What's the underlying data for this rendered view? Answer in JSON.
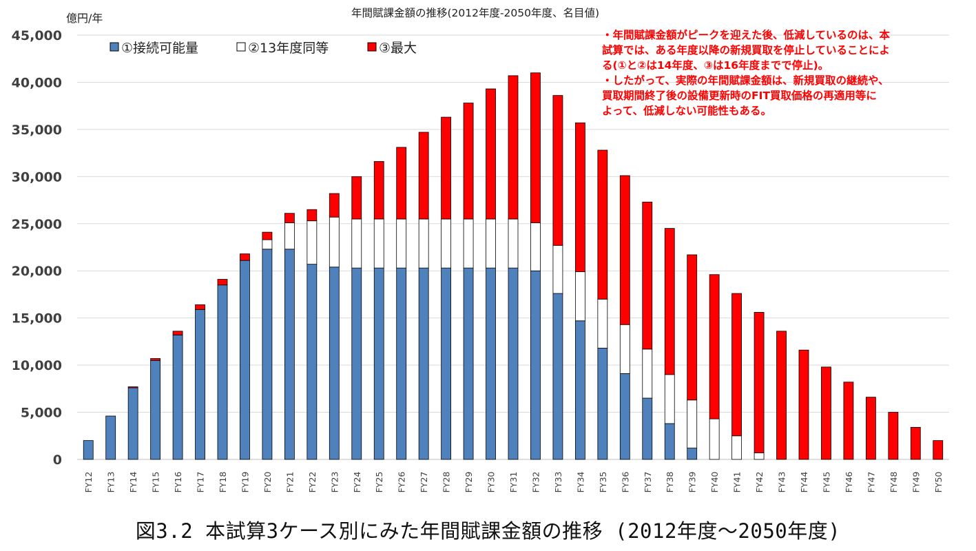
{
  "chart_data": {
    "type": "bar",
    "stacked": true,
    "title": "年間賦課金額の推移(2012年度-2050年度、名目値)",
    "ylabel": "億円/年",
    "ylim": [
      0,
      45000
    ],
    "yticks": [
      0,
      5000,
      10000,
      15000,
      20000,
      25000,
      30000,
      35000,
      40000,
      45000
    ],
    "ytick_labels": [
      "0",
      "5,000",
      "10,000",
      "15,000",
      "20,000",
      "25,000",
      "30,000",
      "35,000",
      "40,000",
      "45,000"
    ],
    "grid": true,
    "legend_position": "top-left",
    "categories": [
      "FY12",
      "FY13",
      "FY14",
      "FY15",
      "FY16",
      "FY17",
      "FY18",
      "FY19",
      "FY20",
      "FY21",
      "FY22",
      "FY23",
      "FY24",
      "FY25",
      "FY26",
      "FY27",
      "FY28",
      "FY29",
      "FY30",
      "FY31",
      "FY32",
      "FY33",
      "FY34",
      "FY35",
      "FY36",
      "FY37",
      "FY38",
      "FY39",
      "FY40",
      "FY41",
      "FY42",
      "FY43",
      "FY44",
      "FY45",
      "FY46",
      "FY47",
      "FY48",
      "FY49",
      "FY50"
    ],
    "series": [
      {
        "name": "①接続可能量",
        "color": "#4f81bd",
        "values": [
          2000,
          4600,
          7600,
          10500,
          13200,
          15900,
          18500,
          21100,
          22300,
          22300,
          20700,
          20400,
          20300,
          20300,
          20300,
          20300,
          20300,
          20300,
          20300,
          20300,
          20000,
          17600,
          14700,
          11800,
          9100,
          6500,
          3800,
          1200,
          0,
          0,
          0,
          0,
          0,
          0,
          0,
          0,
          0,
          0,
          0
        ]
      },
      {
        "name": "②13年度同等",
        "color": "#ffffff",
        "values": [
          0,
          0,
          0,
          0,
          0,
          0,
          0,
          0,
          1000,
          2800,
          4600,
          5300,
          5200,
          5200,
          5200,
          5200,
          5200,
          5200,
          5200,
          5200,
          5100,
          5100,
          5200,
          5200,
          5200,
          5200,
          5200,
          5100,
          4300,
          2500,
          700,
          0,
          0,
          0,
          0,
          0,
          0,
          0,
          0
        ]
      },
      {
        "name": "③最大",
        "color": "#ff0000",
        "values": [
          0,
          0,
          100,
          200,
          400,
          500,
          600,
          700,
          800,
          1000,
          1200,
          2500,
          4500,
          6100,
          7600,
          9200,
          10800,
          12300,
          13800,
          15200,
          15900,
          15900,
          15800,
          15800,
          15800,
          15600,
          15500,
          15400,
          15300,
          15100,
          14900,
          13600,
          11600,
          9800,
          8200,
          6600,
          5000,
          3400,
          2000
        ]
      }
    ]
  },
  "annotation_lines": [
    "・年間賦課金額がピークを迎えた後、低減しているのは、本",
    "試算では、ある年度以降の新規買取を停止していることによ",
    "る(①と②は14年度、③は16年度までで停止)。",
    "・したがって、実際の年間賦課金額は、新規買取の継続や、",
    "買取期間終了後の設備更新時のFIT買取価格の再適用等に",
    "よって、低減しない可能性もある。"
  ],
  "caption": "図3.2 本試算3ケース別にみた年間賦課金額の推移 (2012年度～2050年度)"
}
